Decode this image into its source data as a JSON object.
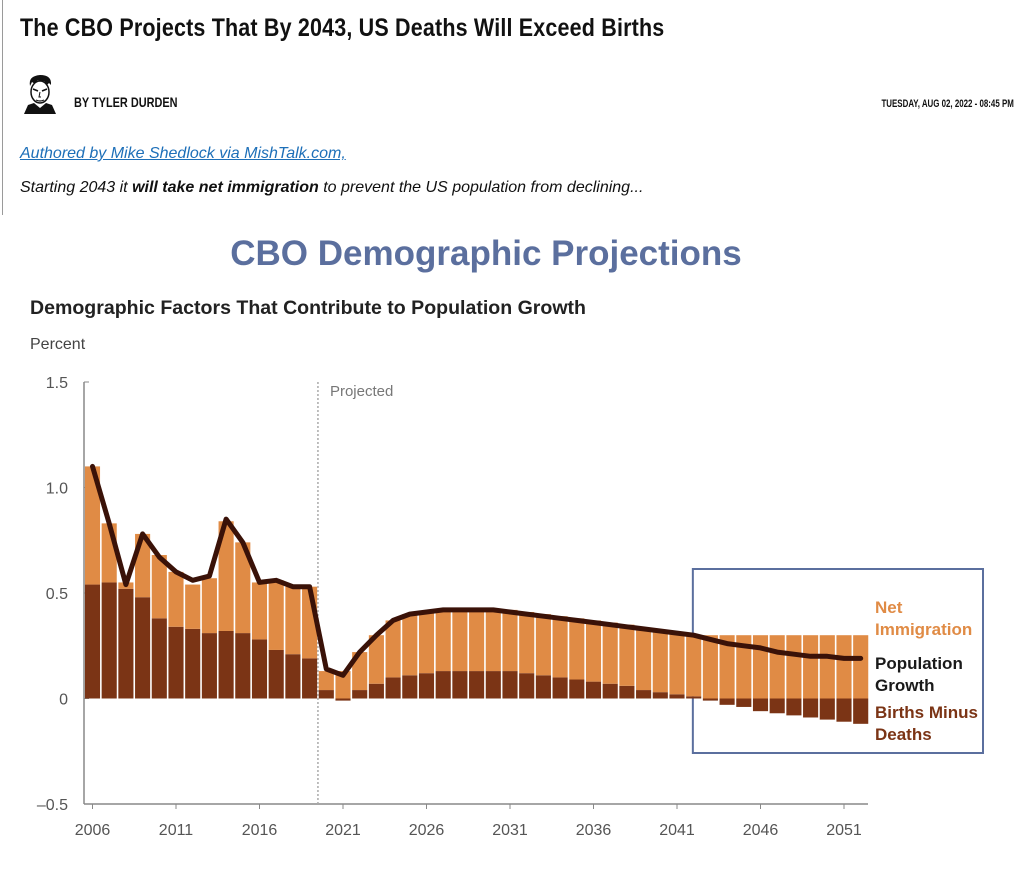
{
  "article": {
    "title": "The CBO Projects That By 2043, US Deaths Will Exceed Births",
    "author": "BY TYLER DURDEN",
    "date": "TUESDAY, AUG 02, 2022 - 08:45 PM",
    "source_link": "Authored by Mike Shedlock via MishTalk.com,",
    "lede_pre": "Starting 2043 it ",
    "lede_bold": "will take net immigration",
    "lede_post": " to prevent the US population from declining..."
  },
  "colors": {
    "title_blue": "#5b6f9e",
    "net_immigration": "#e08b45",
    "births_minus_deaths": "#7b3415",
    "population_line": "#3a1208",
    "link": "#1d6fb8"
  },
  "chart_data": {
    "type": "bar",
    "title": "CBO Demographic Projections",
    "subtitle": "Demographic Factors That Contribute to Population Growth",
    "ylabel": "Percent",
    "ylim": [
      -0.5,
      1.5
    ],
    "yticks": [
      -0.5,
      0,
      0.5,
      1.0,
      1.5
    ],
    "ytick_labels": [
      "–0.5",
      "0",
      "0.5",
      "1.0",
      "1.5"
    ],
    "xtick_labels": [
      "2006",
      "2011",
      "2016",
      "2021",
      "2026",
      "2031",
      "2036",
      "2041",
      "2046",
      "2051"
    ],
    "projected_label": "Projected",
    "projected_start": 2019.5,
    "highlight_box": [
      2043,
      2052
    ],
    "x": [
      2006,
      2007,
      2008,
      2009,
      2010,
      2011,
      2012,
      2013,
      2014,
      2015,
      2016,
      2017,
      2018,
      2019,
      2020,
      2021,
      2022,
      2023,
      2024,
      2025,
      2026,
      2027,
      2028,
      2029,
      2030,
      2031,
      2032,
      2033,
      2034,
      2035,
      2036,
      2037,
      2038,
      2039,
      2040,
      2041,
      2042,
      2043,
      2044,
      2045,
      2046,
      2047,
      2048,
      2049,
      2050,
      2051,
      2052
    ],
    "series": [
      {
        "name": "Births Minus Deaths",
        "values": [
          0.54,
          0.55,
          0.52,
          0.48,
          0.38,
          0.34,
          0.33,
          0.31,
          0.32,
          0.31,
          0.28,
          0.23,
          0.21,
          0.19,
          0.04,
          -0.01,
          0.04,
          0.07,
          0.1,
          0.11,
          0.12,
          0.13,
          0.13,
          0.13,
          0.13,
          0.13,
          0.12,
          0.11,
          0.1,
          0.09,
          0.08,
          0.07,
          0.06,
          0.04,
          0.03,
          0.02,
          0.01,
          -0.01,
          -0.03,
          -0.04,
          -0.06,
          -0.07,
          -0.08,
          -0.09,
          -0.1,
          -0.11,
          -0.12
        ]
      },
      {
        "name": "Net Immigration",
        "values": [
          0.56,
          0.28,
          0.03,
          0.3,
          0.3,
          0.26,
          0.21,
          0.26,
          0.52,
          0.43,
          0.27,
          0.33,
          0.32,
          0.34,
          0.09,
          0.13,
          0.18,
          0.23,
          0.27,
          0.29,
          0.29,
          0.29,
          0.29,
          0.29,
          0.29,
          0.29,
          0.29,
          0.29,
          0.29,
          0.29,
          0.29,
          0.29,
          0.29,
          0.29,
          0.29,
          0.29,
          0.29,
          0.3,
          0.3,
          0.3,
          0.3,
          0.3,
          0.3,
          0.3,
          0.3,
          0.3,
          0.3
        ]
      },
      {
        "name": "Population Growth",
        "values": [
          1.1,
          0.83,
          0.54,
          0.78,
          0.67,
          0.6,
          0.56,
          0.58,
          0.85,
          0.74,
          0.55,
          0.56,
          0.53,
          0.53,
          0.14,
          0.11,
          0.22,
          0.3,
          0.37,
          0.4,
          0.41,
          0.42,
          0.42,
          0.42,
          0.42,
          0.41,
          0.4,
          0.39,
          0.38,
          0.37,
          0.36,
          0.35,
          0.34,
          0.33,
          0.32,
          0.31,
          0.3,
          0.28,
          0.26,
          0.25,
          0.24,
          0.22,
          0.21,
          0.2,
          0.2,
          0.19,
          0.19
        ]
      }
    ],
    "legend": {
      "net_immigration": [
        "Net",
        "Immigration"
      ],
      "population_growth": [
        "Population",
        "Growth"
      ],
      "births_minus_deaths": [
        "Births Minus",
        "Deaths"
      ]
    }
  }
}
